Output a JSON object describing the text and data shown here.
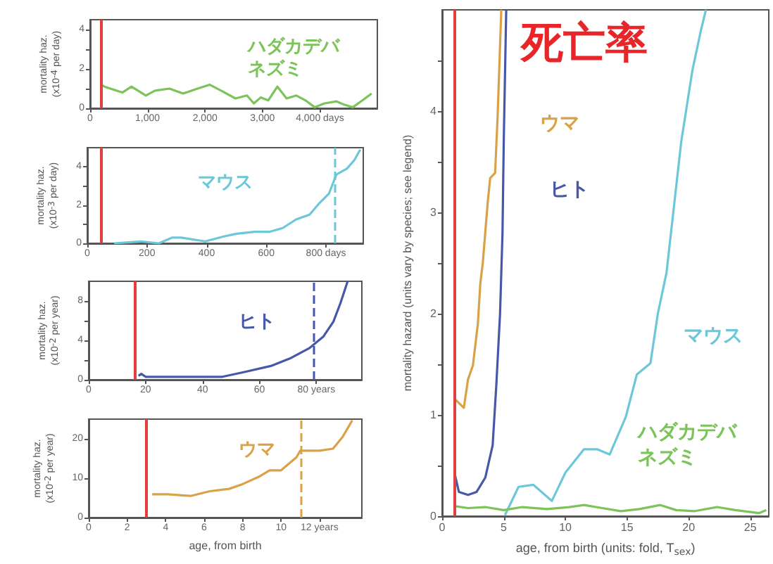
{
  "chart_data": [
    {
      "type": "line",
      "ylabel": "mortality haz.\n(x10$^{-4}$ per day)",
      "xlim": [
        0,
        5000
      ],
      "ylim": [
        0,
        4.5
      ],
      "xticks": [
        0,
        {
          "value": 1000,
          "label": "1,000"
        },
        {
          "value": 2000,
          "label": "2,000"
        },
        {
          "value": 3000,
          "label": "3,000"
        },
        {
          "value": 4000,
          "label": "4,000 days"
        }
      ],
      "yticks": [
        0,
        {
          "value": 1,
          "label": null
        },
        2,
        {
          "value": 3,
          "label": null
        },
        4
      ],
      "marker": "none",
      "series": [
        {
          "name": "ハダカデバネズミ",
          "color": "#7cc45a",
          "x": [
            190,
            250,
            560,
            720,
            970,
            1130,
            1380,
            1620,
            1870,
            2080,
            2280,
            2530,
            2730,
            2850,
            2970,
            3100,
            3260,
            3420,
            3590,
            3750,
            3910,
            4080,
            4290,
            4410,
            4570,
            4740,
            4900
          ],
          "values": [
            1.2,
            1.1,
            0.8,
            1.1,
            0.65,
            0.9,
            1.0,
            0.75,
            1.0,
            1.2,
            0.9,
            0.5,
            0.65,
            0.25,
            0.55,
            0.4,
            1.1,
            0.5,
            0.65,
            0.4,
            0.05,
            0.25,
            0.35,
            0.2,
            0.05,
            0.4,
            0.75
          ]
        }
      ],
      "ref_lines": [
        {
          "axis": "x",
          "value": 190,
          "color": "#e04040",
          "line_style": "solid"
        }
      ]
    },
    {
      "type": "line",
      "ylabel": "mortality haz.\n(x10$^{-3}$ per day)",
      "xlim": [
        0,
        925
      ],
      "ylim": [
        0,
        5
      ],
      "xticks": [
        0,
        200,
        400,
        600,
        {
          "value": 800,
          "label": "800 days"
        }
      ],
      "yticks": [
        0,
        {
          "value": 1,
          "label": null
        },
        2,
        {
          "value": 3,
          "label": null
        },
        4
      ],
      "marker": "none",
      "series": [
        {
          "name": "マウス",
          "color": "#6cc8d8",
          "x": [
            90,
            180,
            240,
            285,
            315,
            395,
            455,
            500,
            560,
            610,
            655,
            700,
            745,
            775,
            810,
            835,
            870,
            895,
            915
          ],
          "values": [
            0,
            0.1,
            0,
            0.3,
            0.3,
            0.1,
            0.35,
            0.5,
            0.6,
            0.6,
            0.8,
            1.25,
            1.5,
            2.05,
            2.6,
            3.6,
            3.9,
            4.35,
            4.9
          ]
        }
      ],
      "ref_lines": [
        {
          "axis": "x",
          "value": 45,
          "color": "#e04040",
          "line_style": "solid"
        },
        {
          "axis": "x",
          "value": 830,
          "color": "#6cc8d8",
          "line_style": "dashed"
        }
      ]
    },
    {
      "type": "line",
      "ylabel": "mortality haz.\n(x10$^{-2}$ per year)",
      "xlim": [
        0,
        96
      ],
      "ylim": [
        0,
        10
      ],
      "xticks": [
        0,
        20,
        40,
        60,
        {
          "value": 80,
          "label": "80 years"
        }
      ],
      "yticks": [
        0,
        {
          "value": 2,
          "label": null
        },
        4,
        {
          "value": 6,
          "label": null
        },
        8
      ],
      "marker": "none",
      "series": [
        {
          "name": "ヒト",
          "color": "#4858a8",
          "x": [
            17.5,
            18.5,
            20,
            33,
            47,
            55,
            64,
            71,
            77.5,
            82.5,
            86,
            88.5,
            91
          ],
          "values": [
            0.4,
            0.6,
            0.3,
            0.3,
            0.3,
            0.8,
            1.4,
            2.2,
            3.2,
            4.4,
            5.9,
            7.8,
            10
          ]
        }
      ],
      "ref_lines": [
        {
          "axis": "x",
          "value": 16,
          "color": "#e04040",
          "line_style": "solid"
        },
        {
          "axis": "x",
          "value": 79,
          "color": "#4858a8",
          "line_style": "dashed"
        }
      ]
    },
    {
      "type": "line",
      "xlabel": "age, from birth",
      "ylabel": "mortality haz.\n(x10$^{-2}$ per year)",
      "xlim": [
        0,
        14.2
      ],
      "ylim": [
        0,
        25
      ],
      "xticks": [
        0,
        2,
        4,
        6,
        8,
        10,
        {
          "value": 12,
          "label": "12 years"
        }
      ],
      "yticks": [
        0,
        10,
        20
      ],
      "marker": "none",
      "series": [
        {
          "name": "ウマ",
          "color": "#daa248",
          "x": [
            3.3,
            4.1,
            5.3,
            6.3,
            7.3,
            8,
            8.9,
            9.4,
            10,
            10.8,
            11,
            12,
            12.7,
            13.2,
            13.7
          ],
          "values": [
            5.9,
            5.9,
            5.5,
            6.7,
            7.3,
            8.5,
            10.5,
            12,
            12,
            15.3,
            17,
            17,
            17.5,
            20.5,
            24.7
          ]
        }
      ],
      "ref_lines": [
        {
          "axis": "x",
          "value": 3,
          "color": "#e04040",
          "line_style": "solid"
        },
        {
          "axis": "x",
          "value": 11,
          "color": "#daa248",
          "line_style": "dashed"
        }
      ]
    },
    {
      "type": "line",
      "title": "死亡率",
      "xlabel": "age, from birth (units: fold, T$_{sex}$)",
      "ylabel": "mortality hazard (units vary by species; see legend)",
      "xlim": [
        0,
        26.5
      ],
      "ylim": [
        0,
        5
      ],
      "xticks": [
        0,
        5,
        10,
        15,
        20,
        25
      ],
      "yticks": [
        0,
        {
          "value": 0.5,
          "label": null
        },
        1,
        {
          "value": 1.5,
          "label": null
        },
        2,
        {
          "value": 2.5,
          "label": null
        },
        3,
        {
          "value": 3.5,
          "label": null
        },
        4,
        {
          "value": 4.5,
          "label": null
        }
      ],
      "marker": "none",
      "series": [
        {
          "name": "ウマ",
          "color": "#daa248",
          "x": [
            1.0,
            1.76,
            2.1,
            2.5,
            2.9,
            3.1,
            3.3,
            3.7,
            3.9,
            4.3,
            4.5,
            4.8
          ],
          "values": [
            1.16,
            1.07,
            1.35,
            1.49,
            1.9,
            2.3,
            2.5,
            3.1,
            3.34,
            3.39,
            3.94,
            5.0
          ]
        },
        {
          "name": "ヒト",
          "color": "#4858a8",
          "x": [
            1.0,
            1.36,
            2.1,
            2.8,
            3.5,
            4.1,
            4.4,
            4.7,
            4.9,
            5.0,
            5.2
          ],
          "values": [
            0.43,
            0.24,
            0.21,
            0.24,
            0.38,
            0.7,
            1.3,
            2.0,
            2.8,
            3.7,
            5.0
          ]
        },
        {
          "name": "マウス",
          "color": "#6cc8d8",
          "x": [
            5.1,
            6.2,
            7.4,
            8.9,
            10.0,
            11.5,
            12.6,
            13.6,
            14.9,
            15.8,
            16.9,
            17.5,
            18.2,
            19.4,
            20.3,
            21.0,
            21.4
          ],
          "values": [
            0.01,
            0.29,
            0.31,
            0.15,
            0.43,
            0.66,
            0.66,
            0.61,
            0.98,
            1.4,
            1.51,
            2.0,
            2.4,
            3.7,
            4.4,
            4.8,
            5.0
          ]
        },
        {
          "name": "ハダカデバネズミ",
          "color": "#7cc45a",
          "x": [
            1,
            2.1,
            3.5,
            5.0,
            6.5,
            8.5,
            10.3,
            11.5,
            13,
            14.5,
            16,
            17.7,
            19,
            20.5,
            22.3,
            23.8,
            25.7,
            26.3
          ],
          "values": [
            0.1,
            0.08,
            0.09,
            0.06,
            0.09,
            0.07,
            0.09,
            0.11,
            0.08,
            0.05,
            0.07,
            0.11,
            0.06,
            0.05,
            0.09,
            0.06,
            0.03,
            0.06
          ]
        }
      ],
      "ref_lines": [
        {
          "axis": "x",
          "value": 1,
          "color": "#e04040",
          "line_style": "solid"
        }
      ]
    }
  ]
}
